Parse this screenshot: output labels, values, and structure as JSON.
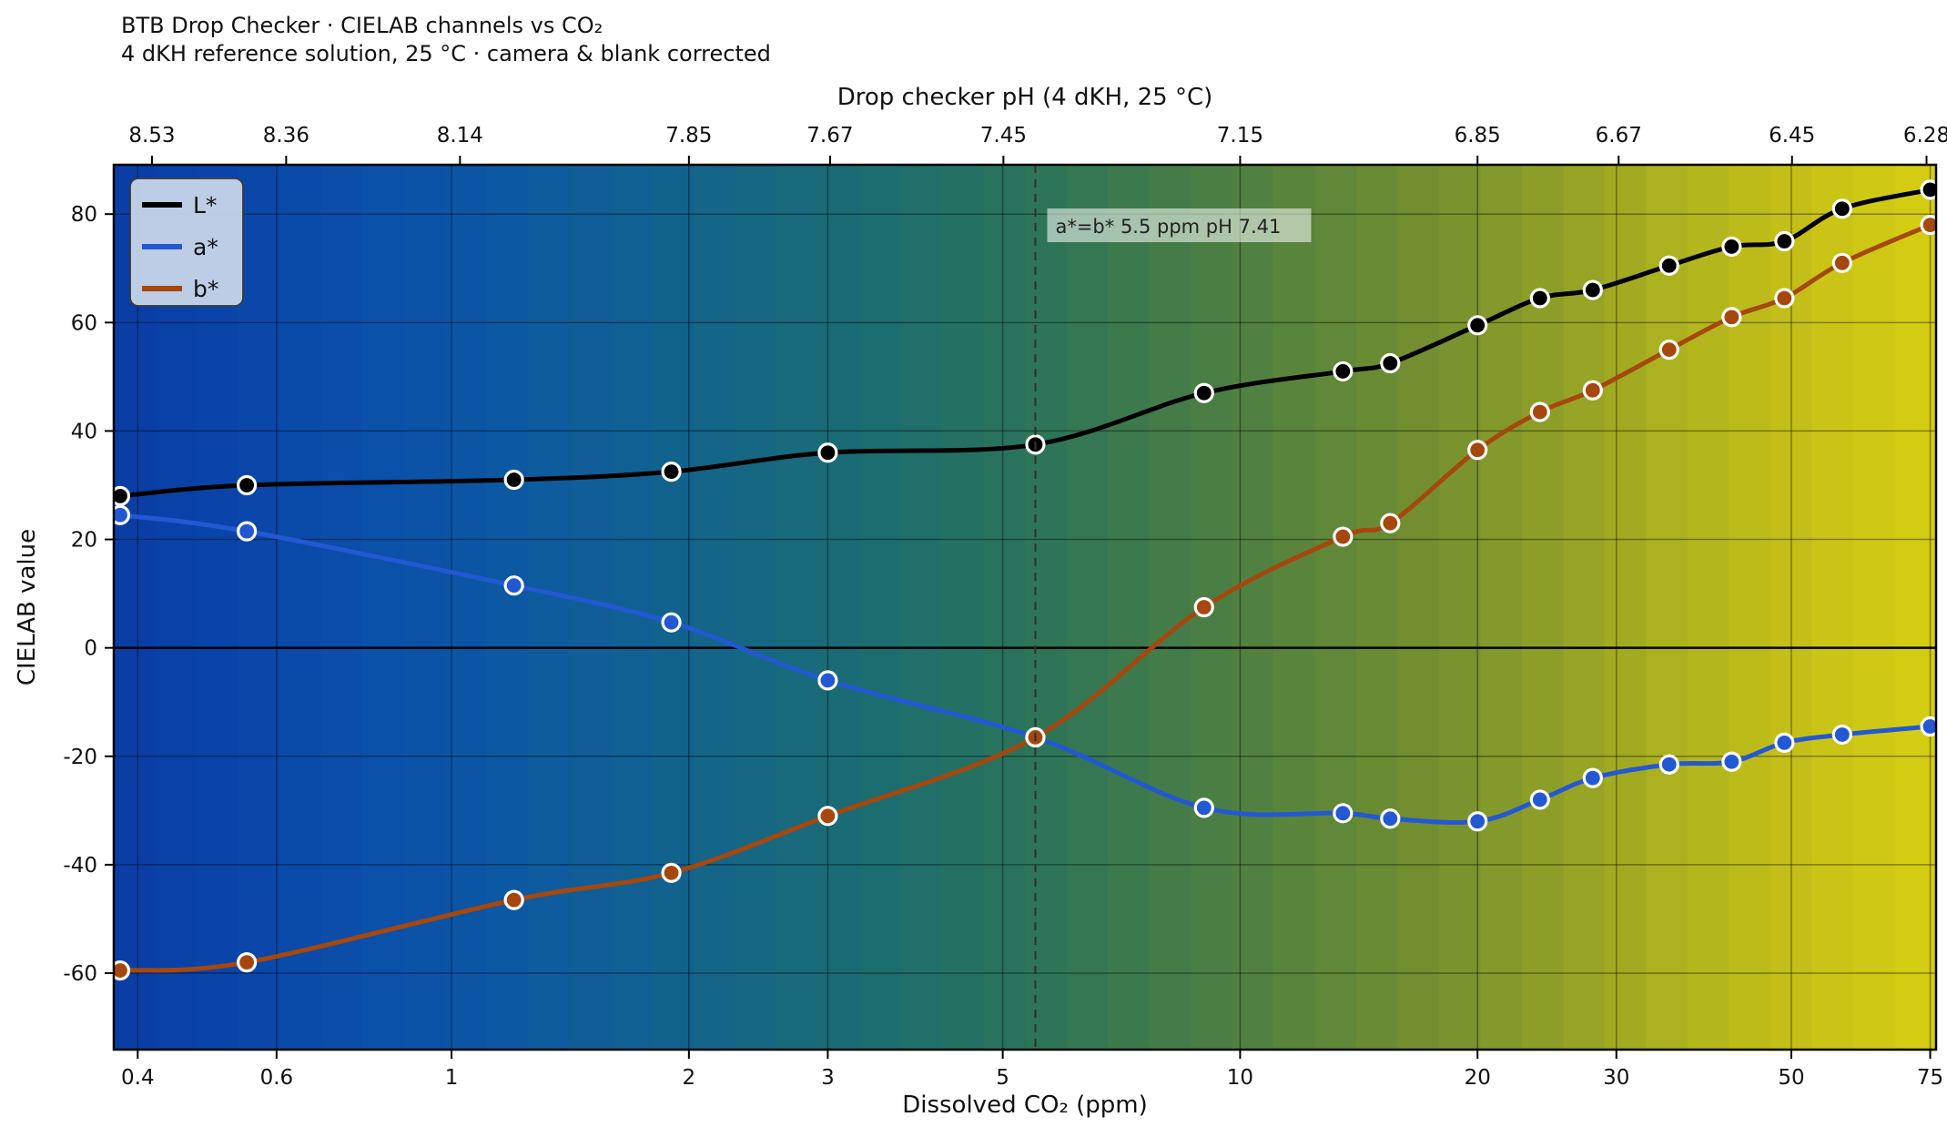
{
  "title": {
    "line1": "BTB Drop Checker  ·  CIELAB channels vs CO₂",
    "line2": "4 dKH reference solution, 25 °C  ·  camera & blank corrected"
  },
  "axes": {
    "x_label": "Dissolved CO₂  (ppm)",
    "y_label": "CIELAB value",
    "top_label": "Drop checker pH  (4 dKH, 25 °C)",
    "x_scale": "log",
    "xlim": [
      0.373,
      76.3
    ],
    "ylim": [
      -74.1,
      89.1
    ],
    "x_ticks": [
      0.4,
      0.6,
      1,
      2,
      3,
      5,
      10,
      20,
      30,
      50,
      75
    ],
    "x_tick_labels": [
      "0.4",
      "0.6",
      "1",
      "2",
      "3",
      "5",
      "10",
      "20",
      "30",
      "50",
      "75"
    ],
    "y_ticks": [
      80,
      60,
      40,
      20,
      0,
      -20,
      -40,
      -60
    ],
    "top_ticks": [
      {
        "label": "8.53",
        "co2": 0.417
      },
      {
        "label": "8.36",
        "co2": 0.617
      },
      {
        "label": "8.14",
        "co2": 1.025
      },
      {
        "label": "7.85",
        "co2": 2.0
      },
      {
        "label": "7.67",
        "co2": 3.02
      },
      {
        "label": "7.45",
        "co2": 5.01
      },
      {
        "label": "7.15",
        "co2": 10.0
      },
      {
        "label": "6.85",
        "co2": 20.0
      },
      {
        "label": "6.67",
        "co2": 30.2
      },
      {
        "label": "6.45",
        "co2": 50.1
      },
      {
        "label": "6.28",
        "co2": 74.2
      }
    ]
  },
  "chart_data": {
    "type": "line",
    "title": "BTB Drop Checker · CIELAB channels vs CO₂",
    "xlabel": "Dissolved CO₂ (ppm)",
    "ylabel": "CIELAB value",
    "x_scale": "log",
    "xlim": [
      0.373,
      76.3
    ],
    "ylim": [
      -74.1,
      89.1
    ],
    "grid": true,
    "legend_position": "upper left",
    "x": [
      0.38,
      0.55,
      1.2,
      1.9,
      3.0,
      5.5,
      9,
      13.5,
      15.5,
      20,
      24,
      28,
      35,
      42,
      49,
      58,
      75
    ],
    "series": [
      {
        "name": "L*",
        "color": "#000000",
        "values": [
          28,
          30,
          31,
          32.5,
          36,
          37.5,
          47,
          51,
          52.5,
          59.5,
          64.5,
          66,
          70.5,
          74,
          75,
          81,
          84.5
        ]
      },
      {
        "name": "a*",
        "color": "#2358d3",
        "values": [
          24.5,
          21.5,
          11.5,
          4.7,
          -6,
          -16.5,
          -29.5,
          -30.5,
          -31.5,
          -32,
          -28,
          -24,
          -21.5,
          -21,
          -17.5,
          -16,
          -14.5
        ]
      },
      {
        "name": "b*",
        "color": "#a6470e",
        "values": [
          -59.5,
          -58,
          -46.5,
          -41.5,
          -31,
          -16.5,
          7.5,
          20.5,
          23,
          36.5,
          43.5,
          47.5,
          55,
          61,
          64.5,
          71,
          78
        ]
      }
    ]
  },
  "legend": {
    "entries": [
      {
        "label": "L*",
        "color": "#000000"
      },
      {
        "label": "a*",
        "color": "#2358d3"
      },
      {
        "label": "b*",
        "color": "#a6470e"
      }
    ]
  },
  "annotation": {
    "text": "a*=b*   5.5 ppm   pH 7.41",
    "x_co2": 5.5
  },
  "colors": {
    "background": "#ffffff",
    "text": "#111111",
    "gridline": "rgba(0,0,0,0.38)",
    "zero_line": "#000000",
    "spine": "#000000",
    "dashed_line": "#333333",
    "annotation_bg": "rgba(255,255,255,0.55)",
    "annotation_text": "#222222",
    "legend_bg": "#cdd9ea",
    "legend_border": "#3a3a3a",
    "marker_edge": "#ffffff",
    "gradient_stops": [
      "#0a3da4",
      "#0a46a9",
      "#0b4fa9",
      "#0d58a2",
      "#116093",
      "#166881",
      "#1d6e6e",
      "#2b745b",
      "#407b4a",
      "#57833c",
      "#718e31",
      "#8e9e28",
      "#aeb21f",
      "#c7c117",
      "#d7ce12"
    ]
  }
}
